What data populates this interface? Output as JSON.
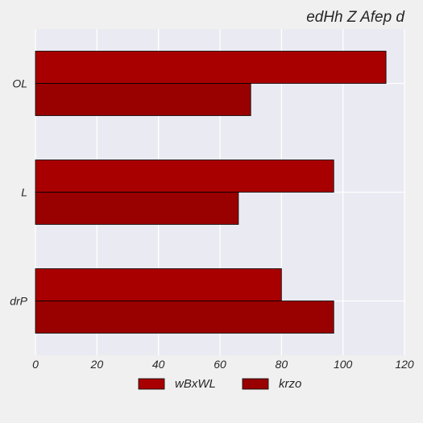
{
  "chart_data": {
    "type": "bar",
    "orientation": "horizontal",
    "title": "edHh Z Afep  d",
    "xlabel": "",
    "ylabel": "",
    "categories": [
      "OL",
      "L",
      "drP"
    ],
    "series": [
      {
        "name": "wBxWL",
        "values": [
          114,
          97,
          80
        ],
        "color": "#a80000"
      },
      {
        "name": "krzo",
        "values": [
          70,
          66,
          97
        ],
        "color": "#990000"
      }
    ],
    "xlim": [
      0,
      120
    ],
    "xticks": [
      0,
      20,
      40,
      60,
      80,
      100,
      120
    ],
    "grid": true,
    "legend_position": "bottom-center",
    "colors": {
      "plot_background": "#eaeaf2",
      "figure_background": "#f0f0f0",
      "grid": "#ffffff",
      "bar_edge": "#000000"
    }
  }
}
